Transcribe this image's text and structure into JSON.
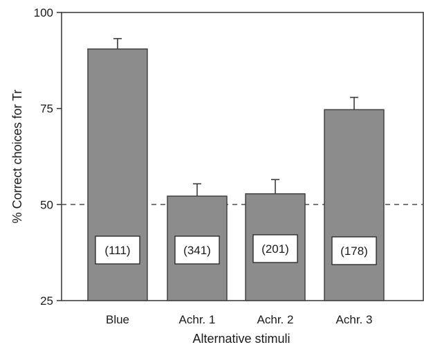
{
  "chart_data": {
    "type": "bar",
    "categories": [
      "Blue",
      "Achr. 1",
      "Achr. 2",
      "Achr. 3"
    ],
    "values": [
      90.5,
      52.2,
      52.8,
      74.7
    ],
    "error_upper": [
      93.2,
      55.4,
      56.5,
      77.9
    ],
    "sample_sizes": [
      "(111)",
      "(341)",
      "(201)",
      "(178)"
    ],
    "reference_line": 50,
    "xlabel": "Alternative stimuli",
    "ylabel": "% Correct choices for Tr",
    "ylim": [
      25,
      100
    ],
    "yticks": [
      25,
      50,
      75,
      100
    ],
    "grid": false,
    "colors": {
      "bar": "#8c8c8c",
      "bar_stroke": "#3a3a3a",
      "axis": "#333333",
      "reference": "#555555"
    }
  }
}
